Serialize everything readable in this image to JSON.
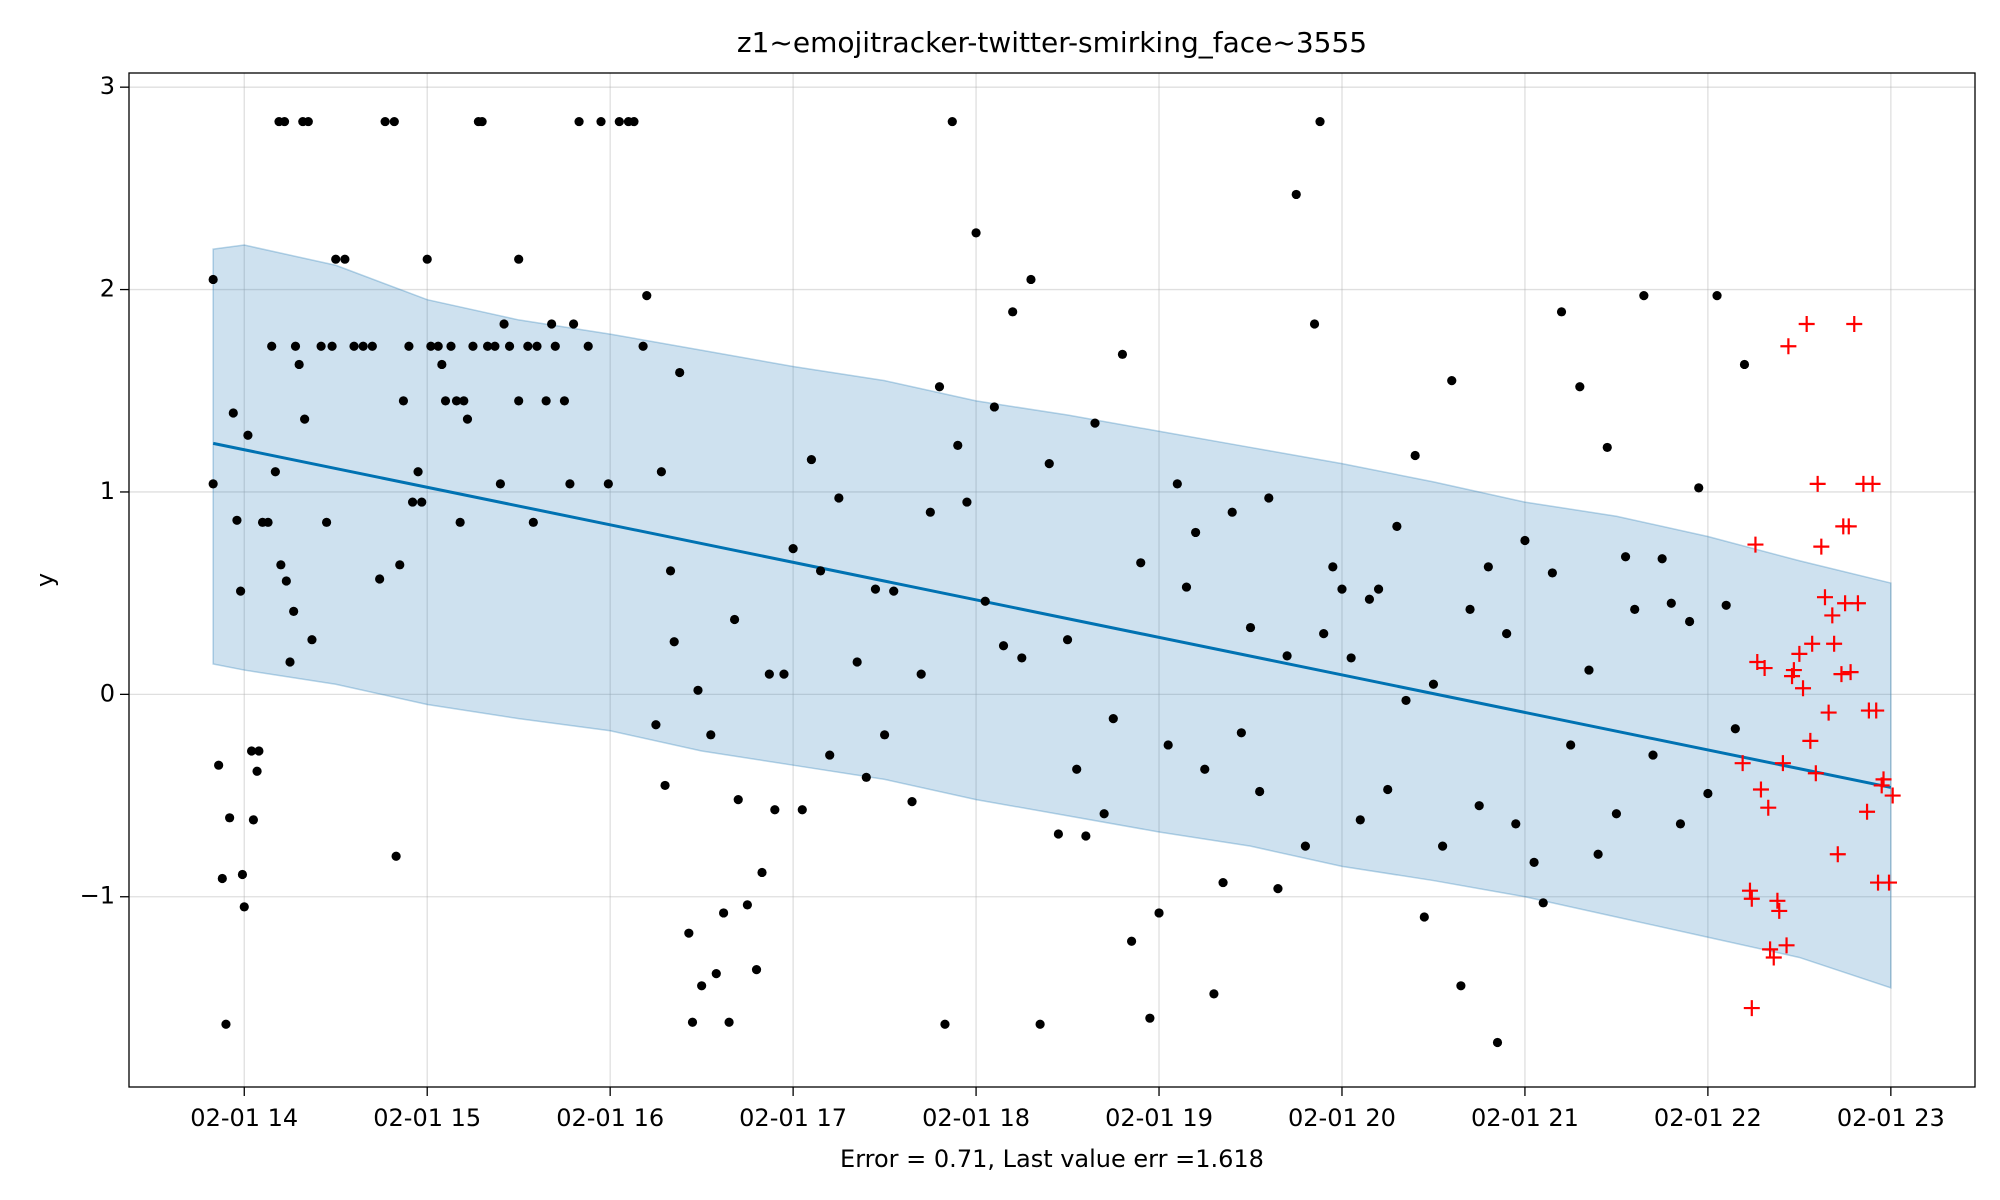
{
  "chart_data": {
    "type": "scatter",
    "title": "z1~emojitracker-twitter-smirking_face~3555",
    "xlabel": "Error = 0.71, Last value err =1.618",
    "ylabel": "y",
    "xlim": [
      13.37,
      23.46
    ],
    "ylim": [
      -1.94,
      3.07
    ],
    "xticks": [
      {
        "value": 14,
        "label": "02-01 14"
      },
      {
        "value": 15,
        "label": "02-01 15"
      },
      {
        "value": 16,
        "label": "02-01 16"
      },
      {
        "value": 17,
        "label": "02-01 17"
      },
      {
        "value": 18,
        "label": "02-01 18"
      },
      {
        "value": 19,
        "label": "02-01 19"
      },
      {
        "value": 20,
        "label": "02-01 20"
      },
      {
        "value": 21,
        "label": "02-01 21"
      },
      {
        "value": 22,
        "label": "02-01 22"
      },
      {
        "value": 23,
        "label": "02-01 23"
      }
    ],
    "yticks": [
      {
        "value": -1,
        "label": "−1"
      },
      0,
      1,
      2,
      3
    ],
    "grid": true,
    "series": [
      {
        "kind": "band",
        "color": "#1f77b4",
        "x": [
          13.83,
          14,
          14.5,
          15,
          15.5,
          16,
          16.5,
          17,
          17.5,
          18,
          18.5,
          19,
          19.5,
          20,
          20.5,
          21,
          21.5,
          22,
          22.5,
          23
        ],
        "upper": [
          2.2,
          2.22,
          2.12,
          1.95,
          1.85,
          1.78,
          1.7,
          1.62,
          1.55,
          1.45,
          1.38,
          1.3,
          1.22,
          1.14,
          1.05,
          0.95,
          0.88,
          0.78,
          0.66,
          0.55
        ],
        "lower": [
          0.15,
          0.12,
          0.05,
          -0.05,
          -0.12,
          -0.18,
          -0.28,
          -0.35,
          -0.42,
          -0.52,
          -0.6,
          -0.68,
          -0.75,
          -0.85,
          -0.92,
          -1.0,
          -1.1,
          -1.2,
          -1.3,
          -1.45
        ]
      },
      {
        "kind": "line",
        "color": "#0072b2",
        "x": [
          13.83,
          23
        ],
        "values": [
          1.24,
          -0.46
        ]
      },
      {
        "kind": "dot",
        "color": "#000000",
        "x": [
          13.83,
          13.83,
          13.86,
          13.88,
          13.9,
          13.92,
          13.94,
          13.96,
          13.98,
          13.99,
          14.0,
          14.02,
          14.04,
          14.05,
          14.07,
          14.08,
          14.1,
          14.13,
          14.15,
          14.17,
          14.19,
          14.22,
          14.2,
          14.23,
          14.25,
          14.27,
          14.3,
          14.28,
          14.32,
          14.35,
          14.33,
          14.37,
          14.42,
          14.45,
          14.48,
          14.5,
          14.55,
          14.6,
          14.65,
          14.7,
          14.74,
          14.77,
          14.82,
          14.83,
          14.85,
          14.87,
          14.9,
          14.92,
          14.95,
          14.97,
          15.0,
          15.02,
          15.06,
          15.08,
          15.1,
          15.13,
          15.16,
          15.2,
          15.18,
          15.22,
          15.25,
          15.28,
          15.3,
          15.33,
          15.37,
          15.4,
          15.42,
          15.45,
          15.5,
          15.5,
          15.55,
          15.58,
          15.6,
          15.65,
          15.68,
          15.7,
          15.75,
          15.8,
          15.78,
          15.83,
          15.88,
          15.95,
          15.99,
          16.05,
          16.1,
          16.13,
          16.18,
          16.2,
          16.25,
          16.28,
          16.3,
          16.33,
          16.35,
          16.38,
          16.43,
          16.45,
          16.48,
          16.5,
          16.55,
          16.58,
          16.62,
          16.65,
          16.68,
          16.7,
          16.75,
          16.8,
          16.83,
          16.87,
          16.9,
          16.95,
          17.0,
          17.05,
          17.1,
          17.15,
          17.2,
          17.25,
          17.35,
          17.4,
          17.45,
          17.5,
          17.55,
          17.65,
          17.7,
          17.75,
          17.8,
          17.83,
          17.87,
          17.9,
          17.95,
          18.0,
          18.05,
          18.1,
          18.15,
          18.2,
          18.25,
          18.3,
          18.35,
          18.4,
          18.45,
          18.5,
          18.55,
          18.6,
          18.65,
          18.7,
          18.75,
          18.8,
          18.85,
          18.9,
          18.95,
          19.0,
          19.05,
          19.1,
          19.15,
          19.2,
          19.25,
          19.3,
          19.35,
          19.4,
          19.45,
          19.5,
          19.55,
          19.6,
          19.65,
          19.7,
          19.75,
          19.8,
          19.85,
          19.88,
          19.9,
          19.95,
          20.0,
          20.05,
          20.1,
          20.15,
          20.2,
          20.25,
          20.3,
          20.35,
          20.4,
          20.45,
          20.5,
          20.55,
          20.6,
          20.65,
          20.7,
          20.75,
          20.8,
          20.85,
          20.9,
          20.95,
          21.0,
          21.05,
          21.1,
          21.15,
          21.2,
          21.25,
          21.3,
          21.35,
          21.4,
          21.45,
          21.5,
          21.55,
          21.6,
          21.65,
          21.7,
          21.75,
          21.8,
          21.85,
          21.9,
          21.95,
          22.0,
          22.05,
          22.1,
          22.15,
          22.2
        ],
        "values": [
          1.04,
          2.05,
          -0.35,
          -0.91,
          -1.63,
          -0.61,
          1.39,
          0.86,
          0.51,
          -0.89,
          -1.05,
          1.28,
          -0.28,
          -0.62,
          -0.38,
          -0.28,
          0.85,
          0.85,
          1.72,
          1.1,
          2.83,
          2.83,
          0.64,
          0.56,
          0.16,
          0.41,
          1.63,
          1.72,
          2.83,
          2.83,
          1.36,
          0.27,
          1.72,
          0.85,
          1.72,
          2.15,
          2.15,
          1.72,
          1.72,
          1.72,
          0.57,
          2.83,
          2.83,
          -0.8,
          0.64,
          1.45,
          1.72,
          0.95,
          1.1,
          0.95,
          2.15,
          1.72,
          1.72,
          1.63,
          1.45,
          1.72,
          1.45,
          1.45,
          0.85,
          1.36,
          1.72,
          2.83,
          2.83,
          1.72,
          1.72,
          1.04,
          1.83,
          1.72,
          2.15,
          1.45,
          1.72,
          0.85,
          1.72,
          1.45,
          1.83,
          1.72,
          1.45,
          1.83,
          1.04,
          2.83,
          1.72,
          2.83,
          1.04,
          2.83,
          2.83,
          2.83,
          1.72,
          1.97,
          -0.15,
          1.1,
          -0.45,
          0.61,
          0.26,
          1.59,
          -1.18,
          -1.62,
          0.02,
          -1.44,
          -0.2,
          -1.38,
          -1.08,
          -1.62,
          0.37,
          -0.52,
          -1.04,
          -1.36,
          -0.88,
          0.1,
          -0.57,
          0.1,
          0.72,
          -0.57,
          1.16,
          0.61,
          -0.3,
          0.97,
          0.16,
          -0.41,
          0.52,
          -0.2,
          0.51,
          -0.53,
          0.1,
          0.9,
          1.52,
          -1.63,
          2.83,
          1.23,
          0.95,
          2.28,
          0.46,
          1.42,
          0.24,
          1.89,
          0.18,
          2.05,
          -1.63,
          1.14,
          -0.69,
          0.27,
          -0.37,
          -0.7,
          1.34,
          -0.59,
          -0.12,
          1.68,
          -1.22,
          0.65,
          -1.6,
          -1.08,
          -0.25,
          1.04,
          0.53,
          0.8,
          -0.37,
          -1.48,
          -0.93,
          0.9,
          -0.19,
          0.33,
          -0.48,
          0.97,
          -0.96,
          0.19,
          2.47,
          -0.75,
          1.83,
          2.83,
          0.3,
          0.63,
          0.52,
          0.18,
          -0.62,
          0.47,
          0.52,
          -0.47,
          0.83,
          -0.03,
          1.18,
          -1.1,
          0.05,
          -0.75,
          1.55,
          -1.44,
          0.42,
          -0.55,
          0.63,
          -1.72,
          0.3,
          -0.64,
          0.76,
          -0.83,
          -1.03,
          0.6,
          1.89,
          -0.25,
          1.52,
          0.12,
          -0.79,
          1.22,
          -0.59,
          0.68,
          0.42,
          1.97,
          -0.3,
          0.67,
          0.45,
          -0.64,
          0.36,
          1.02,
          -0.49,
          1.97,
          0.44,
          -0.17,
          1.63
        ]
      },
      {
        "kind": "cross",
        "color": "#ff0000",
        "x": [
          22.19,
          22.23,
          22.24,
          22.26,
          22.27,
          22.29,
          22.31,
          22.33,
          22.34,
          22.36,
          22.38,
          22.39,
          22.41,
          22.43,
          22.44,
          22.46,
          22.47,
          22.5,
          22.52,
          22.54,
          22.56,
          22.57,
          22.59,
          22.6,
          22.62,
          22.64,
          22.66,
          22.68,
          22.69,
          22.71,
          22.73,
          22.74,
          22.75,
          22.77,
          22.78,
          22.8,
          22.82,
          22.85,
          22.87,
          22.88,
          22.9,
          22.92,
          22.93,
          22.95,
          22.96,
          22.99,
          23.01,
          22.24
        ],
        "values": [
          -0.34,
          -0.97,
          -1.01,
          0.74,
          0.16,
          -0.47,
          0.13,
          -0.56,
          -1.26,
          -1.3,
          -1.02,
          -1.07,
          -0.34,
          -1.24,
          1.72,
          0.09,
          0.12,
          0.2,
          0.03,
          1.83,
          -0.23,
          0.25,
          -0.39,
          1.04,
          0.73,
          0.48,
          -0.09,
          0.39,
          0.25,
          -0.79,
          0.1,
          0.83,
          0.45,
          0.83,
          0.11,
          1.83,
          0.45,
          1.04,
          -0.58,
          -0.08,
          1.04,
          -0.08,
          -0.93,
          -0.45,
          -0.42,
          -0.93,
          -0.5,
          -1.55
        ]
      }
    ]
  }
}
